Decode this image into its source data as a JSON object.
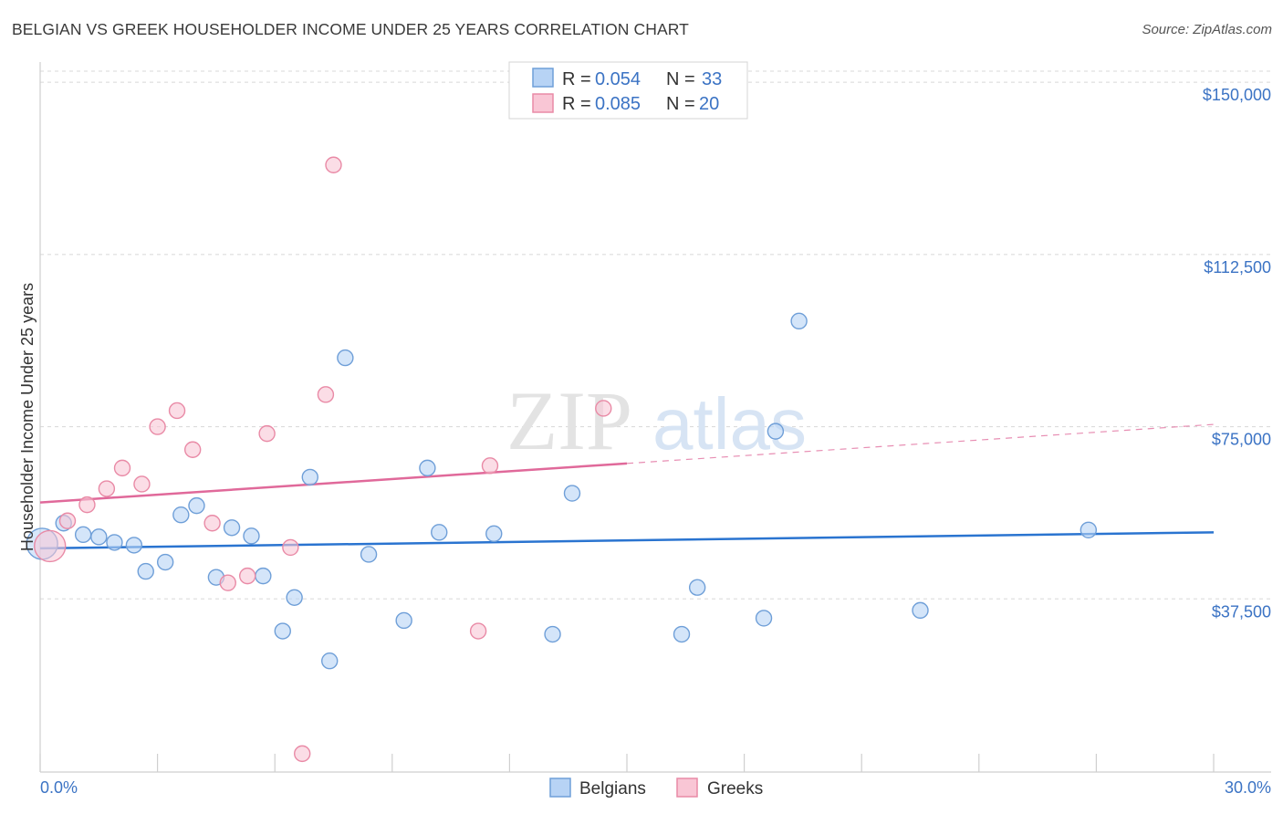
{
  "title": "BELGIAN VS GREEK HOUSEHOLDER INCOME UNDER 25 YEARS CORRELATION CHART",
  "source": "Source: ZipAtlas.com",
  "colors": {
    "blue_fill": "#b7d3f5",
    "blue_stroke": "#6f9fd8",
    "blue_line": "#2a74d0",
    "pink_fill": "#f9c6d5",
    "pink_stroke": "#e98aa6",
    "pink_line": "#e0699a",
    "grid": "#d8d8d8",
    "tick_text": "#3b73c4"
  },
  "legend": {
    "rows": [
      {
        "r_label": "R = ",
        "r_value": "0.054",
        "n_label": "N = ",
        "n_value": "33"
      },
      {
        "r_label": "R = ",
        "r_value": "0.085",
        "n_label": "N = ",
        "n_value": "20"
      }
    ]
  },
  "chart_data": {
    "type": "scatter",
    "title": "BELGIAN VS GREEK HOUSEHOLDER INCOME UNDER 25 YEARS CORRELATION CHART",
    "xlabel": "",
    "ylabel": "Householder Income Under 25 years",
    "xlim": [
      0,
      30
    ],
    "ylim": [
      0,
      155000
    ],
    "x_tick_labels": [
      "0.0%",
      "30.0%"
    ],
    "y_ticks": [
      37500,
      75000,
      112500,
      150000
    ],
    "y_tick_labels": [
      "$37,500",
      "$75,000",
      "$112,500",
      "$150,000"
    ],
    "grid": true,
    "legend_position": "top-center",
    "series": [
      {
        "name": "Belgians",
        "color": "#6f9fd8",
        "points": [
          {
            "x": 0.05,
            "y": 49500,
            "big": true
          },
          {
            "x": 0.6,
            "y": 54000
          },
          {
            "x": 1.1,
            "y": 51500
          },
          {
            "x": 1.5,
            "y": 51000
          },
          {
            "x": 1.9,
            "y": 49800
          },
          {
            "x": 2.4,
            "y": 49200
          },
          {
            "x": 2.7,
            "y": 43500
          },
          {
            "x": 3.2,
            "y": 45500
          },
          {
            "x": 3.6,
            "y": 55800
          },
          {
            "x": 4.0,
            "y": 57800
          },
          {
            "x": 4.5,
            "y": 42200
          },
          {
            "x": 4.9,
            "y": 53000
          },
          {
            "x": 5.4,
            "y": 51200
          },
          {
            "x": 5.7,
            "y": 42500
          },
          {
            "x": 6.2,
            "y": 30500
          },
          {
            "x": 6.5,
            "y": 37800
          },
          {
            "x": 6.9,
            "y": 64000
          },
          {
            "x": 7.4,
            "y": 24000
          },
          {
            "x": 7.8,
            "y": 90000
          },
          {
            "x": 8.4,
            "y": 47200
          },
          {
            "x": 9.3,
            "y": 32800
          },
          {
            "x": 9.9,
            "y": 66000
          },
          {
            "x": 10.2,
            "y": 52000
          },
          {
            "x": 11.6,
            "y": 51700
          },
          {
            "x": 13.1,
            "y": 29800
          },
          {
            "x": 13.6,
            "y": 60500
          },
          {
            "x": 16.4,
            "y": 29800
          },
          {
            "x": 16.8,
            "y": 40000
          },
          {
            "x": 18.5,
            "y": 33300
          },
          {
            "x": 18.8,
            "y": 74000
          },
          {
            "x": 19.4,
            "y": 98000
          },
          {
            "x": 22.5,
            "y": 35000
          },
          {
            "x": 26.8,
            "y": 52500
          }
        ],
        "trend": {
          "x0": 0,
          "y0": 48500,
          "x1": 30,
          "y1": 52000
        }
      },
      {
        "name": "Greeks",
        "color": "#e98aa6",
        "points": [
          {
            "x": 0.25,
            "y": 49000,
            "big": true
          },
          {
            "x": 0.7,
            "y": 54500
          },
          {
            "x": 1.2,
            "y": 58000
          },
          {
            "x": 1.7,
            "y": 61500
          },
          {
            "x": 2.1,
            "y": 66000
          },
          {
            "x": 2.6,
            "y": 62500
          },
          {
            "x": 3.0,
            "y": 75000
          },
          {
            "x": 3.5,
            "y": 78500
          },
          {
            "x": 3.9,
            "y": 70000
          },
          {
            "x": 4.4,
            "y": 54000
          },
          {
            "x": 4.8,
            "y": 41000
          },
          {
            "x": 5.3,
            "y": 42500
          },
          {
            "x": 5.8,
            "y": 73500
          },
          {
            "x": 6.4,
            "y": 48700
          },
          {
            "x": 6.7,
            "y": 3800
          },
          {
            "x": 7.3,
            "y": 82000
          },
          {
            "x": 7.5,
            "y": 132000
          },
          {
            "x": 11.2,
            "y": 30500
          },
          {
            "x": 11.5,
            "y": 66500
          },
          {
            "x": 14.4,
            "y": 79000
          }
        ],
        "trend": {
          "x0": 0,
          "y0": 58500,
          "x1": 15,
          "y1": 67000
        },
        "trend_extension": {
          "x0": 15,
          "y0": 67000,
          "x1": 30,
          "y1": 75500
        }
      }
    ]
  },
  "bottom_legend": [
    {
      "label": "Belgians"
    },
    {
      "label": "Greeks"
    }
  ],
  "watermark": {
    "part1": "ZIP",
    "part2": "atlas"
  }
}
